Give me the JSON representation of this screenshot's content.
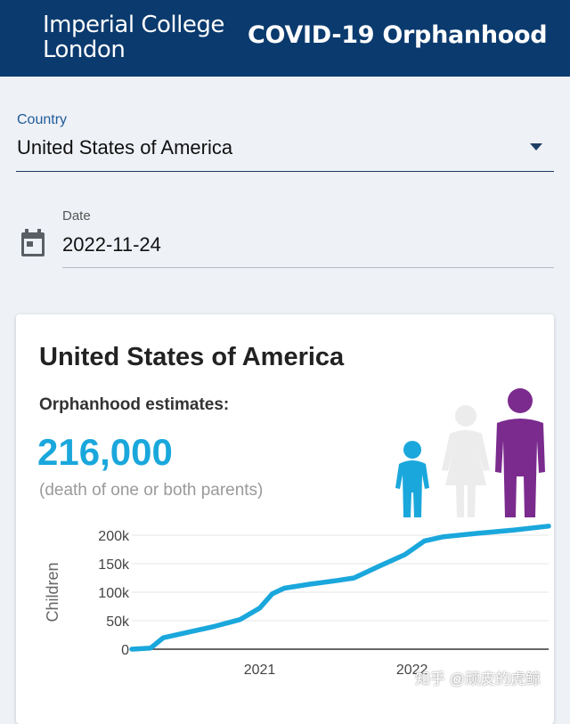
{
  "header": {
    "logo_line1": "Imperial College",
    "logo_line2": "London",
    "title": "COVID-19 Orphanhood"
  },
  "country_select": {
    "label": "Country",
    "value": "United States of America"
  },
  "date_field": {
    "label": "Date",
    "value": "2022-11-24",
    "icon": "calendar-icon"
  },
  "summary": {
    "country": "United States of America",
    "estimate_label": "Orphanhood estimates:",
    "estimate_value": "216,000",
    "estimate_note": "(death of one or both parents)",
    "icons": [
      "child-figure-icon",
      "female-figure-icon",
      "male-figure-icon"
    ]
  },
  "colors": {
    "header": "#0b3a6e",
    "accent": "#1aa7dc",
    "female": "#ececec",
    "male": "#7b2b8e"
  },
  "chart_data": {
    "type": "line",
    "ylabel": "Children",
    "xlabel": "",
    "yticks": [
      "0",
      "50k",
      "100k",
      "150k",
      "200k"
    ],
    "ylim": [
      0,
      200000
    ],
    "xticks": [
      {
        "label": "2021",
        "x": "2021-01-01"
      },
      {
        "label": "2022",
        "x": "2022-01-01"
      }
    ],
    "xlim": [
      "2020-03-01",
      "2022-11-24"
    ],
    "series": [
      {
        "color": "#1aa7dc",
        "points": [
          {
            "x": "2020-03-01",
            "y": 0
          },
          {
            "x": "2020-04-15",
            "y": 2000
          },
          {
            "x": "2020-05-15",
            "y": 20000
          },
          {
            "x": "2020-07-15",
            "y": 30000
          },
          {
            "x": "2020-09-15",
            "y": 40000
          },
          {
            "x": "2020-11-15",
            "y": 52000
          },
          {
            "x": "2021-01-01",
            "y": 72000
          },
          {
            "x": "2021-01-31",
            "y": 97000
          },
          {
            "x": "2021-03-01",
            "y": 107000
          },
          {
            "x": "2021-05-01",
            "y": 114000
          },
          {
            "x": "2021-07-01",
            "y": 120000
          },
          {
            "x": "2021-08-15",
            "y": 125000
          },
          {
            "x": "2021-10-15",
            "y": 146000
          },
          {
            "x": "2021-12-15",
            "y": 166000
          },
          {
            "x": "2022-01-31",
            "y": 190000
          },
          {
            "x": "2022-03-15",
            "y": 197000
          },
          {
            "x": "2022-06-01",
            "y": 203000
          },
          {
            "x": "2022-09-01",
            "y": 209000
          },
          {
            "x": "2022-11-24",
            "y": 216000
          }
        ]
      }
    ]
  },
  "watermark": "知乎 @顽皮的虎鲸"
}
